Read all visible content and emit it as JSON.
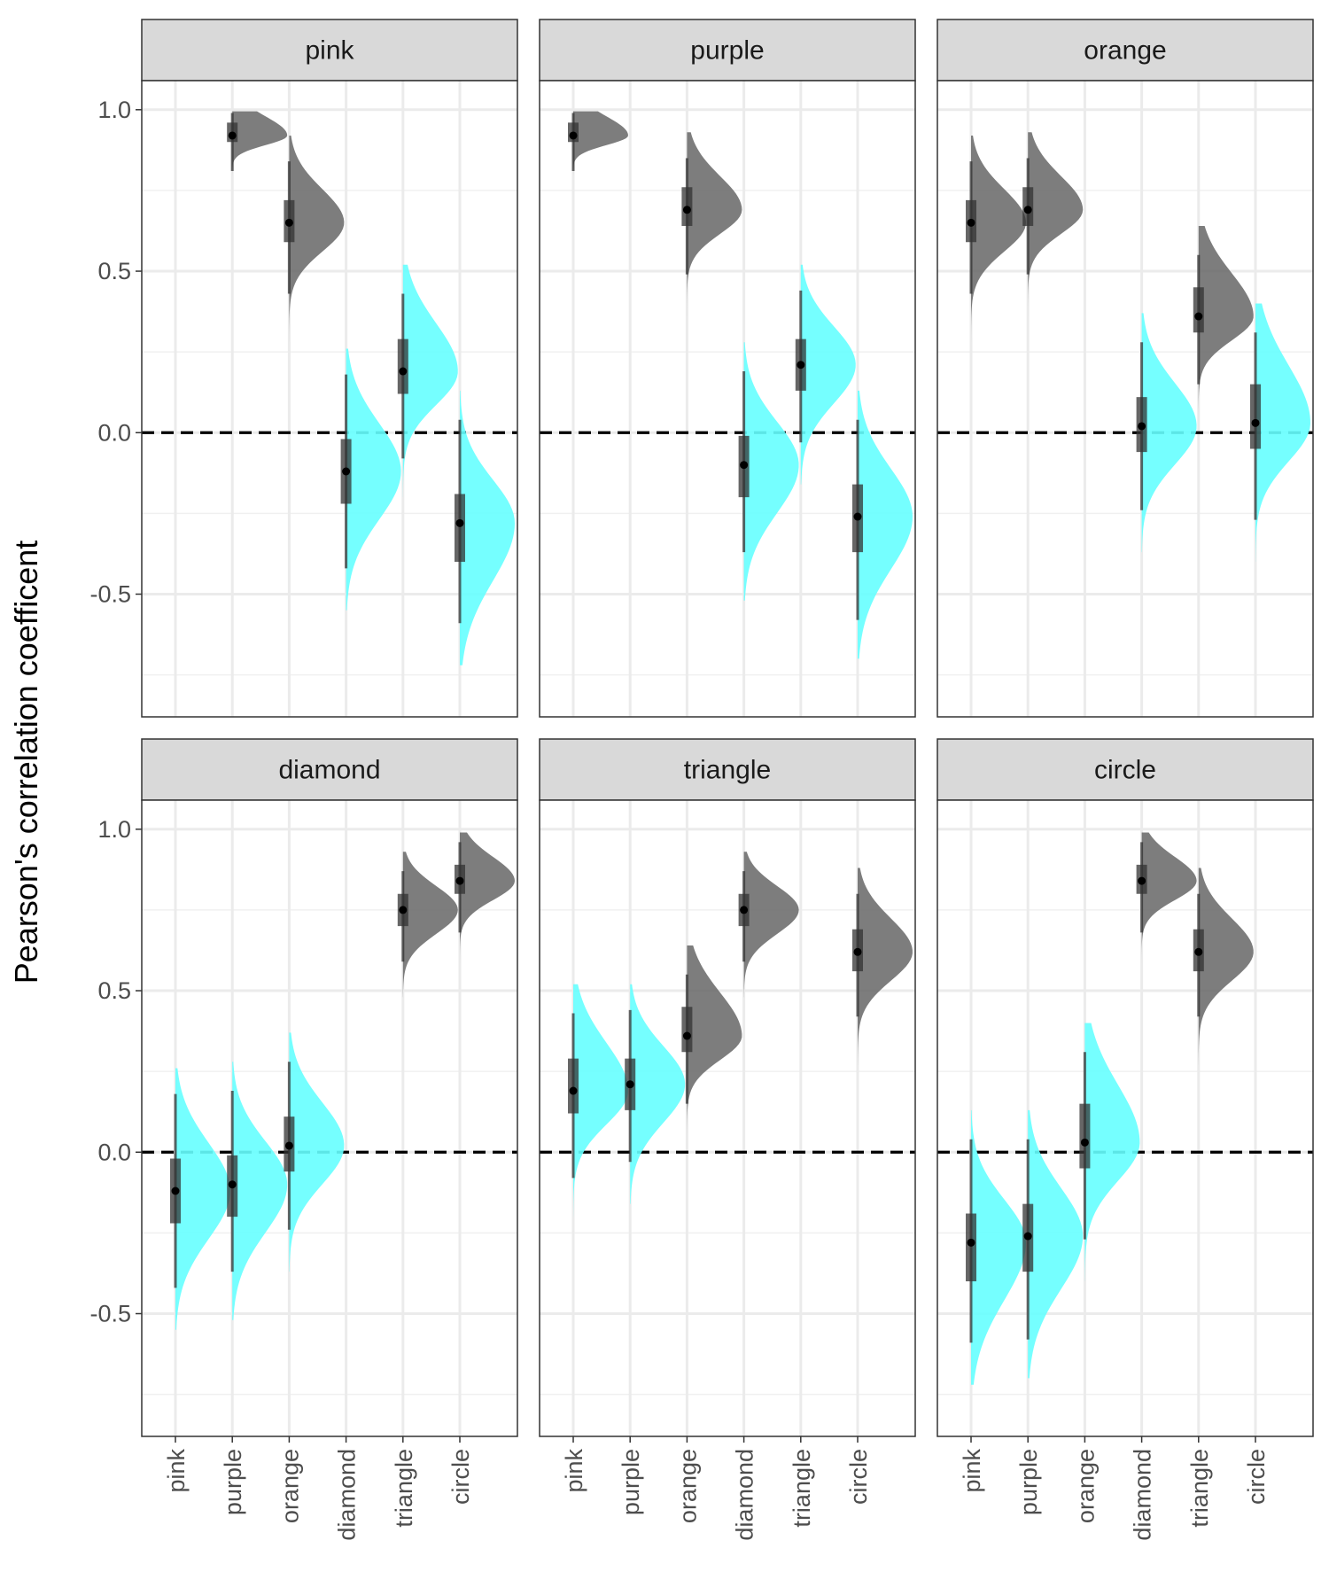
{
  "chart_data": {
    "type": "half-eye",
    "ylabel": "Pearson's correlation coefficent",
    "categories": [
      "pink",
      "purple",
      "orange",
      "diamond",
      "triangle",
      "circle"
    ],
    "y_ticks": [
      1.0,
      0.5,
      0.0,
      -0.5
    ],
    "y_tick_labels": [
      "1.0",
      "0.5",
      "0.0",
      "-0.5"
    ],
    "ylim": [
      -0.88,
      1.09
    ],
    "reference_line": 0.0,
    "colors": {
      "positive": "#666666",
      "negative": "#66ffff",
      "interval": "#333333",
      "strip": "#d9d9d9"
    },
    "panels": [
      {
        "title": "pink",
        "items": [
          {
            "category": "purple",
            "median": 0.92,
            "q25": 0.9,
            "q75": 0.96,
            "lo": 0.81,
            "hi": 0.99,
            "tail_lo": 0.7,
            "tail_hi": 0.995,
            "fill": "positive"
          },
          {
            "category": "orange",
            "median": 0.65,
            "q25": 0.59,
            "q75": 0.72,
            "lo": 0.43,
            "hi": 0.84,
            "tail_lo": 0.28,
            "tail_hi": 0.92,
            "fill": "positive"
          },
          {
            "category": "diamond",
            "median": -0.12,
            "q25": -0.22,
            "q75": -0.02,
            "lo": -0.42,
            "hi": 0.18,
            "tail_lo": -0.55,
            "tail_hi": 0.26,
            "fill": "negative"
          },
          {
            "category": "triangle",
            "median": 0.19,
            "q25": 0.12,
            "q75": 0.29,
            "lo": -0.08,
            "hi": 0.43,
            "tail_lo": -0.2,
            "tail_hi": 0.52,
            "fill": "negative"
          },
          {
            "category": "circle",
            "median": -0.28,
            "q25": -0.4,
            "q75": -0.19,
            "lo": -0.59,
            "hi": 0.04,
            "tail_lo": -0.72,
            "tail_hi": 0.13,
            "fill": "negative"
          }
        ]
      },
      {
        "title": "purple",
        "items": [
          {
            "category": "pink",
            "median": 0.92,
            "q25": 0.9,
            "q75": 0.96,
            "lo": 0.81,
            "hi": 0.99,
            "tail_lo": 0.7,
            "tail_hi": 0.995,
            "fill": "positive"
          },
          {
            "category": "orange",
            "median": 0.69,
            "q25": 0.64,
            "q75": 0.76,
            "lo": 0.49,
            "hi": 0.85,
            "tail_lo": 0.33,
            "tail_hi": 0.93,
            "fill": "positive"
          },
          {
            "category": "diamond",
            "median": -0.1,
            "q25": -0.2,
            "q75": -0.01,
            "lo": -0.37,
            "hi": 0.19,
            "tail_lo": -0.52,
            "tail_hi": 0.28,
            "fill": "negative"
          },
          {
            "category": "triangle",
            "median": 0.21,
            "q25": 0.13,
            "q75": 0.29,
            "lo": -0.03,
            "hi": 0.44,
            "tail_lo": -0.16,
            "tail_hi": 0.52,
            "fill": "negative"
          },
          {
            "category": "circle",
            "median": -0.26,
            "q25": -0.37,
            "q75": -0.16,
            "lo": -0.58,
            "hi": 0.04,
            "tail_lo": -0.7,
            "tail_hi": 0.13,
            "fill": "negative"
          }
        ]
      },
      {
        "title": "orange",
        "items": [
          {
            "category": "pink",
            "median": 0.65,
            "q25": 0.59,
            "q75": 0.72,
            "lo": 0.43,
            "hi": 0.84,
            "tail_lo": 0.28,
            "tail_hi": 0.92,
            "fill": "positive"
          },
          {
            "category": "purple",
            "median": 0.69,
            "q25": 0.64,
            "q75": 0.76,
            "lo": 0.49,
            "hi": 0.85,
            "tail_lo": 0.33,
            "tail_hi": 0.93,
            "fill": "positive"
          },
          {
            "category": "diamond",
            "median": 0.02,
            "q25": -0.06,
            "q75": 0.11,
            "lo": -0.24,
            "hi": 0.28,
            "tail_lo": -0.37,
            "tail_hi": 0.37,
            "fill": "negative"
          },
          {
            "category": "triangle",
            "median": 0.36,
            "q25": 0.31,
            "q75": 0.45,
            "lo": 0.15,
            "hi": 0.55,
            "tail_lo": 0.03,
            "tail_hi": 0.64,
            "fill": "positive"
          },
          {
            "category": "circle",
            "median": 0.03,
            "q25": -0.05,
            "q75": 0.15,
            "lo": -0.27,
            "hi": 0.31,
            "tail_lo": -0.4,
            "tail_hi": 0.4,
            "fill": "negative"
          }
        ]
      },
      {
        "title": "diamond",
        "items": [
          {
            "category": "pink",
            "median": -0.12,
            "q25": -0.22,
            "q75": -0.02,
            "lo": -0.42,
            "hi": 0.18,
            "tail_lo": -0.55,
            "tail_hi": 0.26,
            "fill": "negative"
          },
          {
            "category": "purple",
            "median": -0.1,
            "q25": -0.2,
            "q75": -0.01,
            "lo": -0.37,
            "hi": 0.19,
            "tail_lo": -0.52,
            "tail_hi": 0.28,
            "fill": "negative"
          },
          {
            "category": "orange",
            "median": 0.02,
            "q25": -0.06,
            "q75": 0.11,
            "lo": -0.24,
            "hi": 0.28,
            "tail_lo": -0.37,
            "tail_hi": 0.37,
            "fill": "negative"
          },
          {
            "category": "triangle",
            "median": 0.75,
            "q25": 0.7,
            "q75": 0.8,
            "lo": 0.59,
            "hi": 0.87,
            "tail_lo": 0.48,
            "tail_hi": 0.93,
            "fill": "positive"
          },
          {
            "category": "circle",
            "median": 0.84,
            "q25": 0.8,
            "q75": 0.89,
            "lo": 0.68,
            "hi": 0.96,
            "tail_lo": 0.56,
            "tail_hi": 0.99,
            "fill": "positive"
          }
        ]
      },
      {
        "title": "triangle",
        "items": [
          {
            "category": "pink",
            "median": 0.19,
            "q25": 0.12,
            "q75": 0.29,
            "lo": -0.08,
            "hi": 0.43,
            "tail_lo": -0.2,
            "tail_hi": 0.52,
            "fill": "negative"
          },
          {
            "category": "purple",
            "median": 0.21,
            "q25": 0.13,
            "q75": 0.29,
            "lo": -0.03,
            "hi": 0.44,
            "tail_lo": -0.16,
            "tail_hi": 0.52,
            "fill": "negative"
          },
          {
            "category": "orange",
            "median": 0.36,
            "q25": 0.31,
            "q75": 0.45,
            "lo": 0.15,
            "hi": 0.55,
            "tail_lo": 0.03,
            "tail_hi": 0.64,
            "fill": "positive"
          },
          {
            "category": "diamond",
            "median": 0.75,
            "q25": 0.7,
            "q75": 0.8,
            "lo": 0.59,
            "hi": 0.87,
            "tail_lo": 0.48,
            "tail_hi": 0.93,
            "fill": "positive"
          },
          {
            "category": "circle",
            "median": 0.62,
            "q25": 0.56,
            "q75": 0.69,
            "lo": 0.42,
            "hi": 0.8,
            "tail_lo": 0.27,
            "tail_hi": 0.88,
            "fill": "positive"
          }
        ]
      },
      {
        "title": "circle",
        "items": [
          {
            "category": "pink",
            "median": -0.28,
            "q25": -0.4,
            "q75": -0.19,
            "lo": -0.59,
            "hi": 0.04,
            "tail_lo": -0.72,
            "tail_hi": 0.13,
            "fill": "negative"
          },
          {
            "category": "purple",
            "median": -0.26,
            "q25": -0.37,
            "q75": -0.16,
            "lo": -0.58,
            "hi": 0.04,
            "tail_lo": -0.7,
            "tail_hi": 0.13,
            "fill": "negative"
          },
          {
            "category": "orange",
            "median": 0.03,
            "q25": -0.05,
            "q75": 0.15,
            "lo": -0.27,
            "hi": 0.31,
            "tail_lo": -0.4,
            "tail_hi": 0.4,
            "fill": "negative"
          },
          {
            "category": "diamond",
            "median": 0.84,
            "q25": 0.8,
            "q75": 0.89,
            "lo": 0.68,
            "hi": 0.96,
            "tail_lo": 0.56,
            "tail_hi": 0.99,
            "fill": "positive"
          },
          {
            "category": "triangle",
            "median": 0.62,
            "q25": 0.56,
            "q75": 0.69,
            "lo": 0.42,
            "hi": 0.8,
            "tail_lo": 0.27,
            "tail_hi": 0.88,
            "fill": "positive"
          }
        ]
      }
    ]
  }
}
